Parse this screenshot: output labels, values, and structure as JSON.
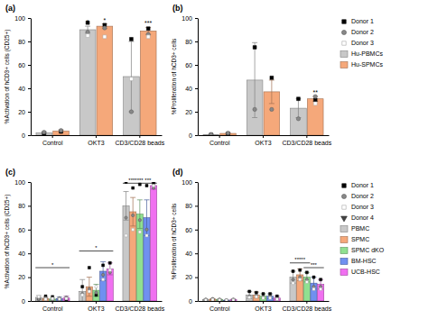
{
  "chart_data": [
    {
      "type": "bar",
      "title": "(a)",
      "y_label": "%Activation of hCD3+ cells (CD25+)",
      "categories": [
        "Control",
        "OKT3",
        "CD3/CD28 beads"
      ],
      "ylim": [
        0,
        100
      ],
      "yticks": [
        0,
        20,
        40,
        60,
        80,
        100
      ],
      "series": [
        {
          "color": "#c8c8c8",
          "values": [
            2.0,
            90.0,
            50.0
          ],
          "errors": [
            1.0,
            3.0,
            30.0
          ],
          "dots": [
            [
              1.5,
              2.5
            ],
            [
              96.0,
              88.0,
              85.0
            ],
            [
              82.0,
              20.0,
              48.0
            ]
          ]
        },
        {
          "color": "#f5a87a",
          "values": [
            3.5,
            93.0,
            89.0
          ],
          "errors": [
            1.0,
            2.0,
            3.0
          ],
          "dots": [
            [
              3.0,
              4.0
            ],
            [
              94.0,
              91.5,
              84.0
            ],
            [
              91.0,
              86.0,
              84.0
            ]
          ]
        }
      ],
      "donors": [
        {
          "marker": "square",
          "color": "#000000"
        },
        {
          "marker": "circle",
          "color": "#888888"
        },
        {
          "marker": "square",
          "color": "#ffffff"
        }
      ],
      "annotations": [
        {
          "text": "*",
          "series": 0,
          "category": 1
        },
        {
          "text": "*",
          "series": 1,
          "category": 1
        },
        {
          "text": "***",
          "series": 1,
          "category": 2
        }
      ]
    },
    {
      "type": "bar",
      "title": "(b)",
      "y_label": "%Proliferation of hCD3+ cells",
      "categories": [
        "Control",
        "OKT3",
        "CD3/CD28 beads"
      ],
      "ylim": [
        0,
        100
      ],
      "yticks": [
        0,
        20,
        40,
        60,
        80,
        100
      ],
      "legend": "right",
      "series": [
        {
          "name": "Hu-PBMCs",
          "color": "#c8c8c8",
          "values": [
            0.5,
            47.0,
            23.0
          ],
          "errors": [
            0.3,
            32.0,
            8.0
          ],
          "dots": [
            [
              0.3,
              0.7
            ],
            [
              75.0,
              22.0
            ],
            [
              31.0,
              14.0
            ]
          ]
        },
        {
          "name": "Hu-SPMCs",
          "color": "#f5a87a",
          "values": [
            1.5,
            37.0,
            31.0
          ],
          "errors": [
            0.5,
            10.0,
            2.0
          ],
          "dots": [
            [
              1.2,
              1.8
            ],
            [
              49.0,
              22.0
            ],
            [
              30.0,
              33.0,
              27.0
            ]
          ]
        }
      ],
      "donors": [
        {
          "name": "Donor 1",
          "marker": "square",
          "color": "#000000"
        },
        {
          "name": "Donor 2",
          "marker": "circle",
          "color": "#888888"
        },
        {
          "name": "Donor 3",
          "marker": "square",
          "color": "#ffffff"
        }
      ],
      "annotations": [
        {
          "text": "**",
          "series": 1,
          "category": 2
        }
      ]
    },
    {
      "type": "bar",
      "title": "(c)",
      "y_label": "%Activation of hCD3+ cells (CD25+)",
      "categories": [
        "Control",
        "OKT3",
        "CD3/CD28 beads"
      ],
      "ylim": [
        0,
        100
      ],
      "yticks": [
        0,
        20,
        40,
        60,
        80,
        100
      ],
      "series": [
        {
          "color": "#c8c8c8",
          "values": [
            3.0,
            8.0,
            80.0
          ],
          "errors": [
            1.5,
            10.0,
            12.0
          ],
          "dots": [
            [
              2.0,
              1.5,
              3.5
            ],
            [
              12.0,
              6.0,
              5.0
            ],
            [
              100.0,
              70.0,
              55.0
            ]
          ]
        },
        {
          "color": "#f5a87a",
          "values": [
            2.0,
            12.0,
            75.0
          ],
          "errors": [
            1.0,
            8.0,
            12.0
          ],
          "dots": [
            [
              4.0,
              2.5,
              1.5
            ],
            [
              28.0,
              10.0,
              8.0
            ],
            [
              95.0,
              72.0,
              60.0
            ]
          ]
        },
        {
          "color": "#90e090",
          "values": [
            1.5,
            9.0,
            73.0
          ],
          "errors": [
            0.8,
            5.0,
            12.0
          ],
          "dots": [
            [
              3.5,
              1.0,
              2.0
            ],
            [
              5.0,
              7.0,
              12.0
            ],
            [
              98.0,
              68.0,
              58.0
            ]
          ]
        },
        {
          "color": "#7090f0",
          "values": [
            2.0,
            25.0,
            70.0
          ],
          "errors": [
            1.2,
            8.0,
            15.0
          ],
          "dots": [
            [
              1.5,
              2.5,
              1.5
            ],
            [
              30.0,
              22.0,
              18.0
            ],
            [
              97.0,
              60.0,
              55.0
            ]
          ]
        },
        {
          "color": "#f070f0",
          "values": [
            2.5,
            27.0,
            97.0
          ],
          "errors": [
            1.5,
            5.0,
            3.0
          ],
          "dots": [
            [
              1.0,
              3.0,
              2.0
            ],
            [
              32.0,
              24.0,
              26.0
            ],
            [
              99.0,
              95.0,
              97.0
            ]
          ]
        }
      ],
      "donors": [
        {
          "marker": "square",
          "color": "#000000"
        },
        {
          "marker": "circle",
          "color": "#888888"
        },
        {
          "marker": "square",
          "color": "#ffffff"
        }
      ],
      "annotations": [
        {
          "text": "*",
          "category": 1,
          "from_series": 0,
          "to_series": 4,
          "y": 42
        },
        {
          "text": "*",
          "category": 0,
          "from_series": 0,
          "to_series": 4,
          "y": 28
        },
        {
          "text": "******* ***",
          "category": 2,
          "from_series": 0,
          "to_series": 4,
          "y": 99
        }
      ]
    },
    {
      "type": "bar",
      "title": "(d)",
      "y_label": "%Proliferation of hCD3+ cells",
      "categories": [
        "Control",
        "OKT3",
        "CD3/CD28 beads"
      ],
      "ylim": [
        0,
        100
      ],
      "yticks": [
        0,
        20,
        40,
        60,
        80,
        100
      ],
      "legend": "right",
      "series": [
        {
          "name": "PBMC",
          "color": "#c8c8c8",
          "values": [
            1.0,
            5.0,
            20.0
          ],
          "errors": [
            0.5,
            3.0,
            5.0
          ],
          "dots": [
            [
              0.8,
              1.3,
              0.7
            ],
            [
              8.0,
              4.0,
              3.0
            ],
            [
              25.0,
              18.0,
              15.0
            ]
          ]
        },
        {
          "name": "SPMC",
          "color": "#f5a87a",
          "values": [
            1.5,
            5.0,
            22.0
          ],
          "errors": [
            0.5,
            2.5,
            5.0
          ],
          "dots": [
            [
              1.2,
              1.8,
              1.1
            ],
            [
              7.0,
              4.5,
              3.5
            ],
            [
              26.0,
              20.0,
              18.0
            ]
          ]
        },
        {
          "name": "SPMC dKO",
          "color": "#90e090",
          "values": [
            1.0,
            4.0,
            20.0
          ],
          "errors": [
            0.5,
            2.0,
            4.0
          ],
          "dots": [
            [
              0.8,
              1.3,
              0.7
            ],
            [
              6.0,
              3.0,
              2.5
            ],
            [
              24.0,
              18.0,
              16.0
            ]
          ]
        },
        {
          "name": "BM-HSC",
          "color": "#7090f0",
          "values": [
            0.5,
            4.0,
            15.0
          ],
          "errors": [
            0.3,
            2.0,
            5.0
          ],
          "dots": [
            [
              0.4,
              0.6,
              0.5
            ],
            [
              6.0,
              3.5,
              2.5
            ],
            [
              20.0,
              12.0,
              10.0
            ]
          ]
        },
        {
          "name": "UCB-HSC",
          "color": "#f070f0",
          "values": [
            1.0,
            2.5,
            14.0
          ],
          "errors": [
            0.5,
            1.5,
            4.0
          ],
          "dots": [
            [
              0.8,
              1.3,
              0.7
            ],
            [
              4.0,
              2.0,
              1.5
            ],
            [
              18.0,
              12.0,
              10.0
            ]
          ]
        }
      ],
      "donors": [
        {
          "name": "Donor 1",
          "marker": "square",
          "color": "#000000"
        },
        {
          "name": "Donor 2",
          "marker": "circle",
          "color": "#888888"
        },
        {
          "name": "Donor 3",
          "marker": "square",
          "color": "#ffffff"
        },
        {
          "name": "Donor 4",
          "marker": "triangle-down",
          "color": "#444444"
        }
      ],
      "annotations": [
        {
          "text": "*****",
          "category": 2,
          "from_series": 0,
          "to_series": 2,
          "y": 32
        },
        {
          "text": "***",
          "category": 2,
          "from_series": 2,
          "to_series": 4,
          "y": 28
        }
      ]
    }
  ]
}
